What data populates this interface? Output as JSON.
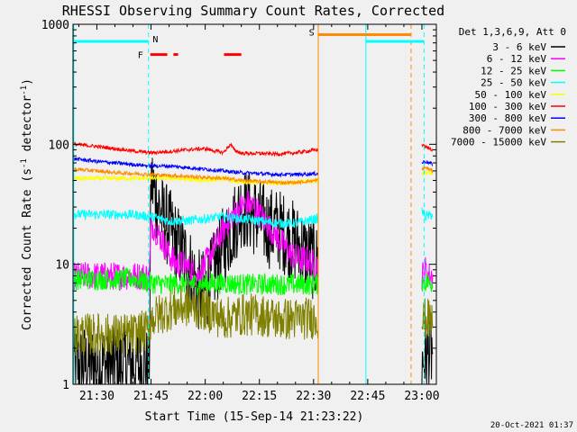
{
  "chart_data": {
    "type": "line",
    "title": "RHESSI Observing Summary Count Rates, Corrected",
    "xlabel": "Start Time (15-Sep-14 21:23:22)",
    "ylabel": "Corrected Count Rate (s⁻¹ detector⁻¹)",
    "ylabel_main": "Corrected Count Rate (s",
    "ylabel_sup1": "-1",
    "ylabel_mid": " detector",
    "ylabel_sup2": "-1",
    "ylabel_end": ")",
    "yscale": "log",
    "xlim_minutes": [
      1283.4,
      1384.0
    ],
    "ylim": [
      1,
      1000
    ],
    "x_ticks": [
      {
        "t": 1290,
        "label": "21:30"
      },
      {
        "t": 1305,
        "label": "21:45"
      },
      {
        "t": 1320,
        "label": "22:00"
      },
      {
        "t": 1335,
        "label": "22:15"
      },
      {
        "t": 1350,
        "label": "22:30"
      },
      {
        "t": 1365,
        "label": "22:45"
      },
      {
        "t": 1380,
        "label": "23:00"
      }
    ],
    "y_ticks": [
      {
        "v": 1,
        "label": "1"
      },
      {
        "v": 10,
        "label": "10"
      },
      {
        "v": 100,
        "label": "100"
      },
      {
        "v": 1000,
        "label": "1000"
      }
    ],
    "legend_title": "Det 1,3,6,9, Att 0",
    "legend_position": "right",
    "series": [
      {
        "name": "3 - 6 keV",
        "color": "#000000",
        "x": [
          1283.4,
          1290,
          1295,
          1301,
          1302,
          1303,
          1304,
          1304.5,
          1305,
          1306,
          1308,
          1310,
          1312,
          1314,
          1316,
          1318,
          1320,
          1322,
          1324,
          1326,
          1328,
          1330,
          1332,
          1334,
          1336,
          1338,
          1340,
          1342,
          1344,
          1346,
          1348,
          1350,
          1351,
          1380,
          1381,
          1382,
          1383
        ],
        "y": [
          1.4,
          1.5,
          1.4,
          1.5,
          1.4,
          1.6,
          1.3,
          1.5,
          50,
          40,
          25,
          20,
          15,
          12,
          9,
          6,
          6,
          8,
          12,
          16,
          22,
          30,
          28,
          25,
          22,
          20,
          20,
          18,
          16,
          14,
          12,
          11,
          10,
          1.5,
          1.7,
          1.8,
          1.9
        ]
      },
      {
        "name": "6 - 12 keV",
        "color": "#ff00ff",
        "x": [
          1283.4,
          1290,
          1295,
          1300,
          1304,
          1304.5,
          1305,
          1306,
          1308,
          1310,
          1312,
          1314,
          1316,
          1318,
          1320,
          1322,
          1324,
          1326,
          1328,
          1330,
          1332,
          1334,
          1336,
          1338,
          1340,
          1342,
          1344,
          1346,
          1348,
          1350,
          1351,
          1380,
          1381,
          1382,
          1383
        ],
        "y": [
          8,
          8,
          8,
          8,
          8,
          7,
          22,
          20,
          16,
          12,
          10,
          10,
          9,
          8,
          10,
          13,
          17,
          22,
          26,
          30,
          32,
          29,
          24,
          20,
          17,
          14,
          12,
          11,
          11,
          10,
          10,
          8,
          9,
          8,
          8
        ]
      },
      {
        "name": "12 - 25 keV",
        "color": "#00ff00",
        "x": [
          1283.4,
          1290,
          1295,
          1300,
          1305,
          1310,
          1315,
          1320,
          1325,
          1330,
          1335,
          1340,
          1345,
          1351,
          1380,
          1383
        ],
        "y": [
          7.5,
          7.5,
          7.5,
          7.6,
          7.0,
          6.8,
          7.0,
          6.8,
          7.0,
          6.8,
          6.8,
          6.8,
          6.8,
          6.8,
          7.2,
          7.0
        ]
      },
      {
        "name": "25 - 50 keV",
        "color": "#00ffff",
        "x": [
          1283.4,
          1290,
          1295,
          1300,
          1304,
          1305,
          1310,
          1315,
          1320,
          1325,
          1330,
          1335,
          1340,
          1345,
          1351,
          1380,
          1381,
          1383
        ],
        "y": [
          26,
          26,
          26,
          26,
          25,
          25,
          23,
          23,
          24,
          25,
          24,
          23,
          22,
          22,
          24,
          28,
          25,
          26
        ]
      },
      {
        "name": "50 - 100 keV",
        "color": "#ffff00",
        "x": [
          1283.4,
          1290,
          1300,
          1305,
          1310,
          1315,
          1320,
          1325,
          1330,
          1335,
          1340,
          1345,
          1351,
          1380,
          1383
        ],
        "y": [
          52,
          52,
          52,
          52,
          52,
          51,
          50,
          52,
          48,
          48,
          48,
          48,
          50,
          58,
          58
        ]
      },
      {
        "name": "100 - 300 keV",
        "color": "#ff0000",
        "x": [
          1283.4,
          1290,
          1295,
          1300,
          1305,
          1310,
          1315,
          1320,
          1325,
          1327,
          1328,
          1330,
          1335,
          1340,
          1345,
          1351,
          1380,
          1381,
          1383
        ],
        "y": [
          100,
          96,
          92,
          88,
          85,
          87,
          90,
          92,
          85,
          100,
          90,
          84,
          84,
          83,
          85,
          90,
          100,
          95,
          90
        ]
      },
      {
        "name": "300 - 800 keV",
        "color": "#0000ff",
        "x": [
          1283.4,
          1290,
          1295,
          1300,
          1305,
          1310,
          1315,
          1320,
          1325,
          1330,
          1335,
          1340,
          1345,
          1351,
          1380,
          1381,
          1383
        ],
        "y": [
          76,
          72,
          70,
          68,
          66,
          66,
          64,
          62,
          60,
          58,
          57,
          56,
          56,
          57,
          70,
          72,
          68
        ]
      },
      {
        "name": "800 - 7000 keV",
        "color": "#ff8c00",
        "x": [
          1283.4,
          1290,
          1295,
          1300,
          1305,
          1310,
          1315,
          1320,
          1325,
          1330,
          1335,
          1340,
          1345,
          1351,
          1380,
          1381,
          1383
        ],
        "y": [
          62,
          60,
          58,
          57,
          56,
          55,
          54,
          53,
          52,
          50,
          49,
          48,
          48,
          50,
          62,
          64,
          60
        ]
      },
      {
        "name": "7000 - 15000 keV",
        "color": "#808000",
        "x": [
          1283.4,
          1290,
          1295,
          1300,
          1304,
          1305,
          1310,
          1315,
          1320,
          1325,
          1330,
          1335,
          1340,
          1345,
          1351,
          1380,
          1381,
          1383
        ],
        "y": [
          2.6,
          2.6,
          2.6,
          2.6,
          2.8,
          3.5,
          4.2,
          4.5,
          4.2,
          3.5,
          3.8,
          3.8,
          3.5,
          3.5,
          3.6,
          3.3,
          3.5,
          3.4
        ]
      }
    ],
    "annotations": [
      {
        "type": "bar",
        "label": "N",
        "color": "#00ffff",
        "t0": 1283.4,
        "t1": 1304.2,
        "y": 720
      },
      {
        "type": "bar",
        "label": "",
        "color": "#00ffff",
        "t0": 1364.5,
        "t1": 1380.5,
        "y": 720
      },
      {
        "type": "segments",
        "label": "F",
        "color": "#ff0000",
        "y": 560,
        "segments": [
          [
            1304.8,
            1309.5
          ],
          [
            1311.2,
            1312.5
          ],
          [
            1325.2,
            1330
          ]
        ]
      },
      {
        "type": "bar",
        "label": "S",
        "color": "#ff8c00",
        "t0": 1351.2,
        "t1": 1377,
        "y": 820
      }
    ],
    "vlines": [
      {
        "t": 1283.6,
        "color": "#00ffff",
        "style": "solid"
      },
      {
        "t": 1304.3,
        "color": "#00ffff",
        "style": "dashed"
      },
      {
        "t": 1351.3,
        "color": "#ff8c00",
        "style": "solid"
      },
      {
        "t": 1364.5,
        "color": "#00ffff",
        "style": "solid"
      },
      {
        "t": 1377.0,
        "color": "#ff8c00",
        "style": "dashed"
      },
      {
        "t": 1380.6,
        "color": "#00ffff",
        "style": "dashed"
      }
    ],
    "footer_date": "20-Oct-2021 01:37"
  }
}
